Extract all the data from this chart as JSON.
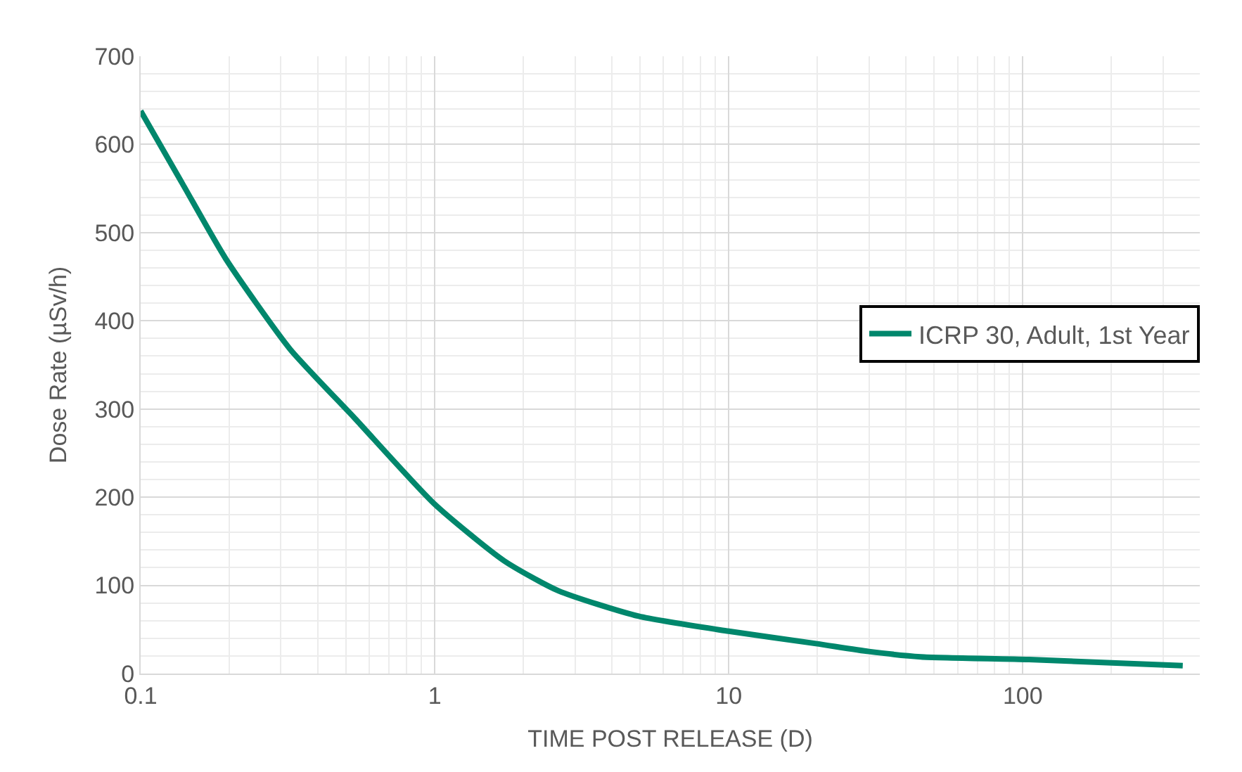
{
  "chart_data": {
    "type": "line",
    "xlabel": "TIME POST RELEASE (D)",
    "ylabel": "Dose Rate (µSv/h)",
    "log": "x",
    "xlim": [
      0.1,
      400
    ],
    "xticks": [
      0.1,
      1,
      10,
      100
    ],
    "ylim": [
      0,
      700
    ],
    "yticks": [
      0,
      100,
      200,
      300,
      400,
      500,
      600,
      700
    ],
    "grid": true,
    "legend": "right",
    "marker": "none",
    "line_style": "solid",
    "series": [
      {
        "name": "ICRP 30, Adult, 1st Year",
        "color": "#00876c",
        "x": [
          0.1,
          0.139,
          0.195,
          0.322,
          0.533,
          1,
          1.72,
          2.63,
          4.94,
          10,
          19.8,
          30,
          45,
          105,
          350
        ],
        "values": [
          638,
          555,
          470,
          368,
          290,
          192,
          128,
          94,
          65,
          48,
          34,
          25,
          19,
          16,
          9
        ]
      }
    ]
  }
}
